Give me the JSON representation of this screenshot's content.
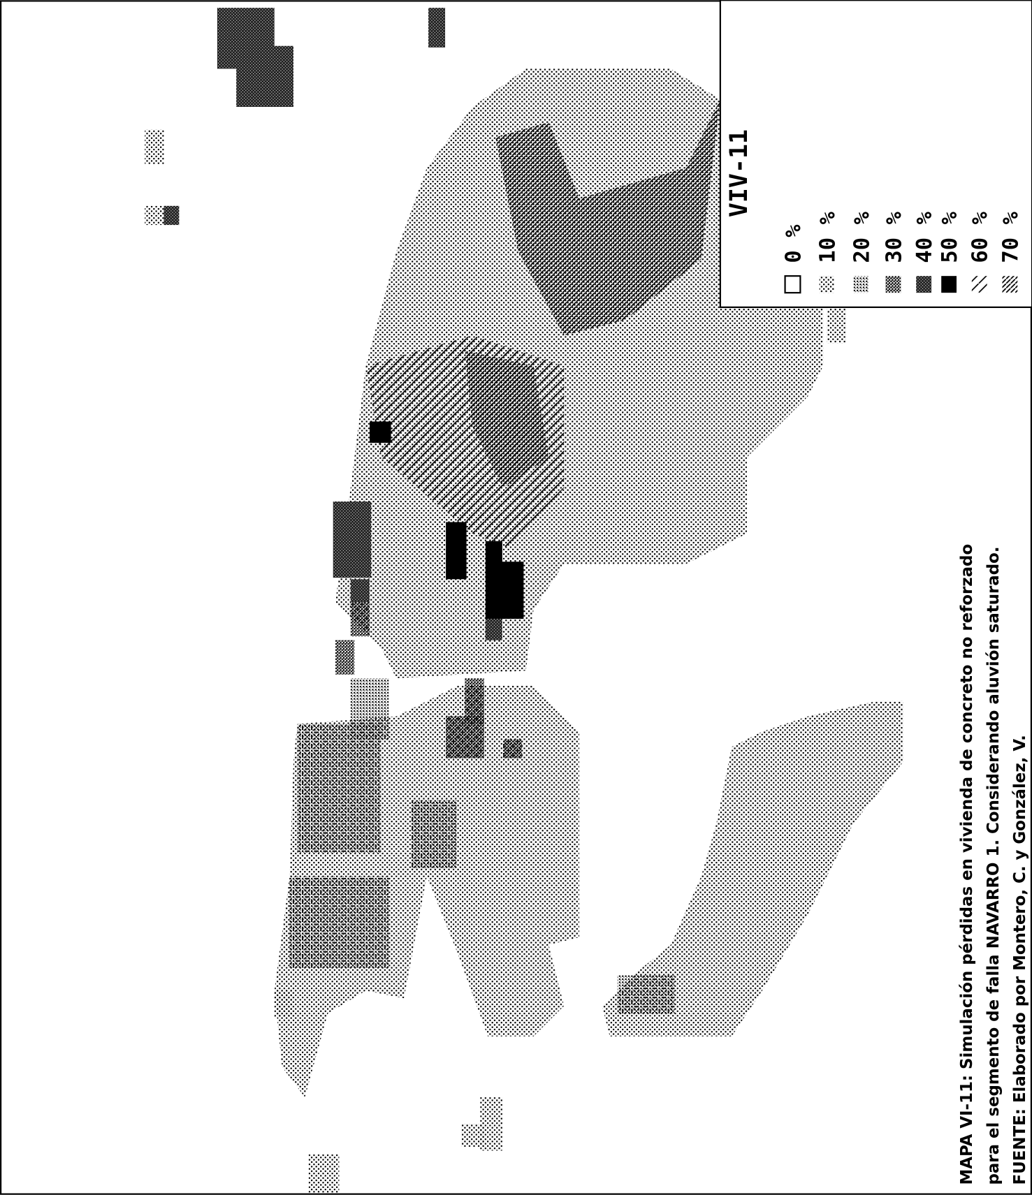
{
  "legend": {
    "title": "VIV-11",
    "items": [
      "0 %",
      "10 %",
      "20 %",
      "30 %",
      "40 %",
      "50 %",
      "60 %",
      "70 %"
    ]
  },
  "caption": {
    "lines": [
      "MAPA VI-11:  Simulación pérdidas en vivienda de concreto no reforzado",
      "para el segmento de falla NAVARRO 1.  Considerando aluvión saturado.",
      "FUENTE: Elaborado por Montero, C. y González, V."
    ]
  }
}
